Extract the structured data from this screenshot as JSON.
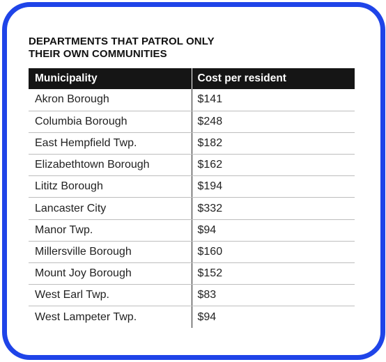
{
  "chart_data": {
    "type": "table",
    "title": [
      "DEPARTMENTS THAT PATROL ONLY",
      "THEIR OWN COMMUNITIES"
    ],
    "columns": [
      "Municipality",
      "Cost per resident"
    ],
    "rows": [
      {
        "name": "Akron Borough",
        "cost": "$141"
      },
      {
        "name": "Columbia Borough",
        "cost": "$248"
      },
      {
        "name": "East Hempfield Twp.",
        "cost": "$182"
      },
      {
        "name": "Elizabethtown Borough",
        "cost": "$162"
      },
      {
        "name": "Lititz Borough",
        "cost": "$194"
      },
      {
        "name": "Lancaster City",
        "cost": "$332"
      },
      {
        "name": "Manor Twp.",
        "cost": "$94"
      },
      {
        "name": "Millersville Borough",
        "cost": "$160"
      },
      {
        "name": "Mount Joy Borough",
        "cost": "$152"
      },
      {
        "name": "West Earl Twp.",
        "cost": "$83"
      },
      {
        "name": "West Lampeter Twp.",
        "cost": "$94"
      }
    ]
  },
  "colors": {
    "frame": "#1f44e8",
    "header_bg": "#151515",
    "header_text": "#ffffff"
  }
}
